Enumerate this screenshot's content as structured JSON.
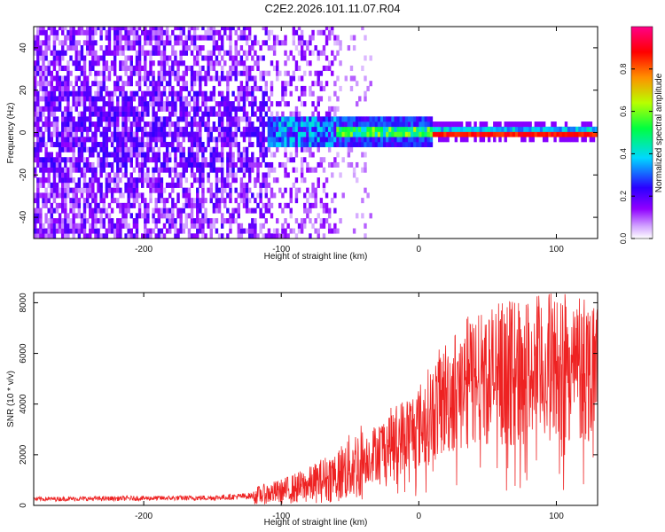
{
  "title": "C2E2.2026.101.11.07.R04",
  "chart_data": [
    {
      "type": "heatmap",
      "name": "spectrogram",
      "xlabel": "Height of straight line (km)",
      "ylabel": "Frequency (Hz)",
      "xlim": [
        -280,
        130
      ],
      "ylim": [
        -50,
        50
      ],
      "xticks": [
        -200,
        -100,
        0,
        100
      ],
      "yticks": [
        -40,
        -20,
        0,
        20,
        40
      ],
      "grid": false,
      "colorbar": {
        "label": "Normalized spectral amplitude",
        "range": [
          0,
          1
        ],
        "ticks": [
          "0.0",
          "0.2",
          "0.4",
          "0.6",
          "0.8"
        ],
        "stops": [
          "#ffffff",
          "#a000ff",
          "#3000ff",
          "#00e0ff",
          "#00ff40",
          "#b0ff00",
          "#ff8000",
          "#ff0000",
          "#ff0080"
        ]
      },
      "description_of_data": {
        "noise_region_km": [
          -280,
          -110
        ],
        "signal_center_hz": 0,
        "signal_onset_km": -110,
        "strong_line_onset_km": 10
      }
    },
    {
      "type": "line",
      "name": "snr",
      "xlabel": "Height of straight line (km)",
      "ylabel": "SNR (10 * v/v)",
      "xlim": [
        -280,
        130
      ],
      "ylim": [
        0,
        8400
      ],
      "xticks": [
        -200,
        -100,
        0,
        100
      ],
      "yticks": [
        0,
        2000,
        4000,
        6000,
        8000
      ],
      "color": "#ee2222",
      "grid": false,
      "trend_points": {
        "x": [
          -280,
          -200,
          -150,
          -120,
          -100,
          -80,
          -60,
          -40,
          -20,
          0,
          20,
          40,
          60,
          80,
          100,
          120,
          130
        ],
        "y": [
          250,
          280,
          300,
          380,
          550,
          800,
          1200,
          1800,
          2500,
          3100,
          4300,
          5000,
          5200,
          5300,
          5500,
          5200,
          5800
        ]
      }
    }
  ]
}
